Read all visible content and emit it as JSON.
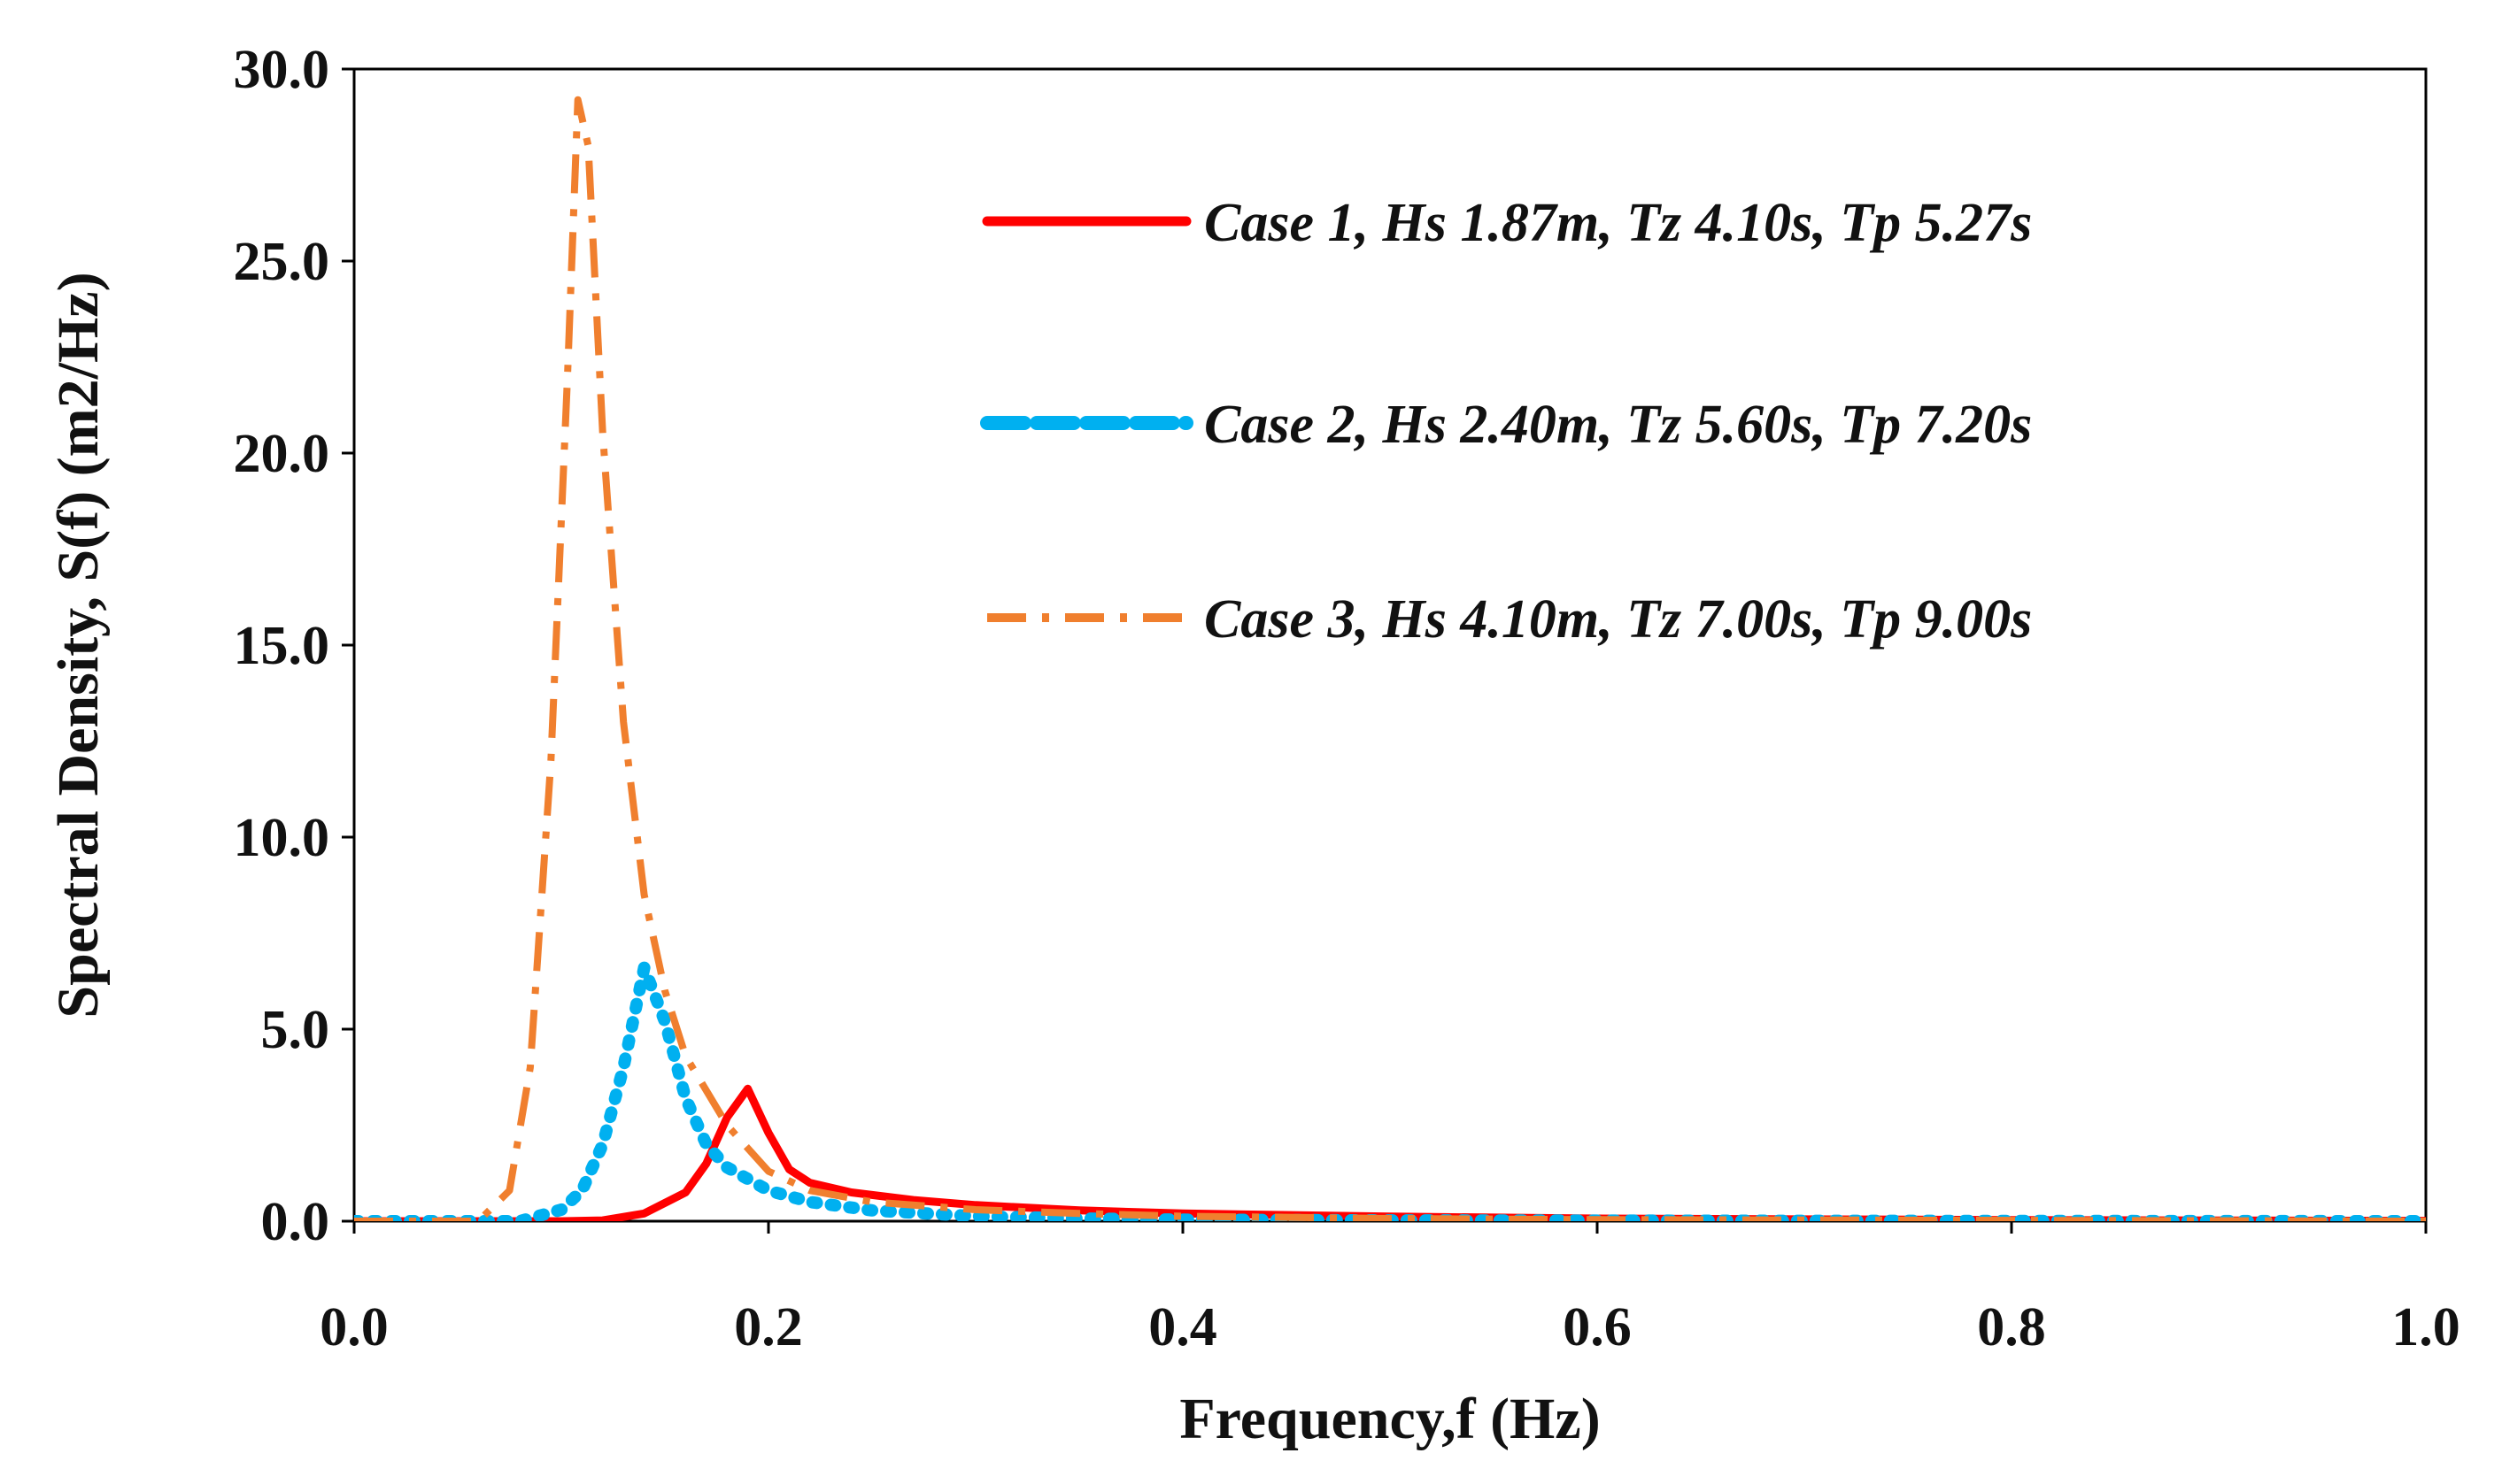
{
  "chart_data": {
    "type": "line",
    "title": "",
    "xlabel": "Frequency,f (Hz)",
    "ylabel": "Spectral Density, S(f) (m2/Hz)",
    "xlim": [
      0.0,
      1.0
    ],
    "ylim": [
      0.0,
      30.0
    ],
    "xticks": [
      0.0,
      0.2,
      0.4,
      0.6,
      0.8,
      1.0
    ],
    "xtick_labels": [
      "0.0",
      "0.2",
      "0.4",
      "0.6",
      "0.8",
      "1.0"
    ],
    "yticks": [
      0.0,
      5.0,
      10.0,
      15.0,
      20.0,
      25.0,
      30.0
    ],
    "ytick_labels": [
      "0.0",
      "5.0",
      "10.0",
      "15.0",
      "20.0",
      "25.0",
      "30.0"
    ],
    "grid": false,
    "legend_position": "top-right",
    "series": [
      {
        "name": "Case 1, Hs 1.87m, Tz 4.10s, Tp 5.27s",
        "color": "#ff0000",
        "style": "solid",
        "points": [
          [
            0.0,
            0.0
          ],
          [
            0.1,
            0.0
          ],
          [
            0.12,
            0.02
          ],
          [
            0.14,
            0.2
          ],
          [
            0.16,
            0.75
          ],
          [
            0.17,
            1.5
          ],
          [
            0.18,
            2.7
          ],
          [
            0.19,
            3.45
          ],
          [
            0.2,
            2.3
          ],
          [
            0.21,
            1.35
          ],
          [
            0.22,
            1.0
          ],
          [
            0.24,
            0.75
          ],
          [
            0.27,
            0.55
          ],
          [
            0.3,
            0.42
          ],
          [
            0.35,
            0.28
          ],
          [
            0.4,
            0.2
          ],
          [
            0.5,
            0.12
          ],
          [
            0.6,
            0.07
          ],
          [
            0.8,
            0.03
          ],
          [
            1.0,
            0.01
          ]
        ]
      },
      {
        "name": "Case 2, Hs 2.40m, Tz 5.60s, Tp 7.20s",
        "color": "#00b0f0",
        "style": "dotted",
        "points": [
          [
            0.0,
            0.0
          ],
          [
            0.08,
            0.0
          ],
          [
            0.1,
            0.3
          ],
          [
            0.11,
            0.8
          ],
          [
            0.12,
            2.0
          ],
          [
            0.13,
            4.0
          ],
          [
            0.14,
            6.6
          ],
          [
            0.15,
            5.2
          ],
          [
            0.16,
            3.2
          ],
          [
            0.17,
            2.0
          ],
          [
            0.18,
            1.4
          ],
          [
            0.2,
            0.8
          ],
          [
            0.22,
            0.5
          ],
          [
            0.25,
            0.28
          ],
          [
            0.3,
            0.13
          ],
          [
            0.35,
            0.07
          ],
          [
            0.4,
            0.04
          ],
          [
            0.5,
            0.02
          ],
          [
            0.7,
            0.01
          ],
          [
            1.0,
            0.0
          ]
        ]
      },
      {
        "name": "Case 3, Hs 4.10m, Tz 7.00s, Tp 9.00s",
        "color": "#f07f2e",
        "style": "dashdot",
        "points": [
          [
            0.0,
            0.0
          ],
          [
            0.06,
            0.0
          ],
          [
            0.075,
            0.8
          ],
          [
            0.085,
            4.0
          ],
          [
            0.095,
            12.0
          ],
          [
            0.103,
            22.0
          ],
          [
            0.108,
            29.2
          ],
          [
            0.113,
            28.0
          ],
          [
            0.12,
            20.5
          ],
          [
            0.13,
            13.0
          ],
          [
            0.14,
            8.5
          ],
          [
            0.15,
            6.0
          ],
          [
            0.16,
            4.3
          ],
          [
            0.18,
            2.5
          ],
          [
            0.2,
            1.3
          ],
          [
            0.22,
            0.8
          ],
          [
            0.25,
            0.5
          ],
          [
            0.3,
            0.3
          ],
          [
            0.35,
            0.2
          ],
          [
            0.4,
            0.13
          ],
          [
            0.5,
            0.07
          ],
          [
            0.6,
            0.04
          ],
          [
            0.8,
            0.02
          ],
          [
            1.0,
            0.0
          ]
        ]
      }
    ]
  }
}
